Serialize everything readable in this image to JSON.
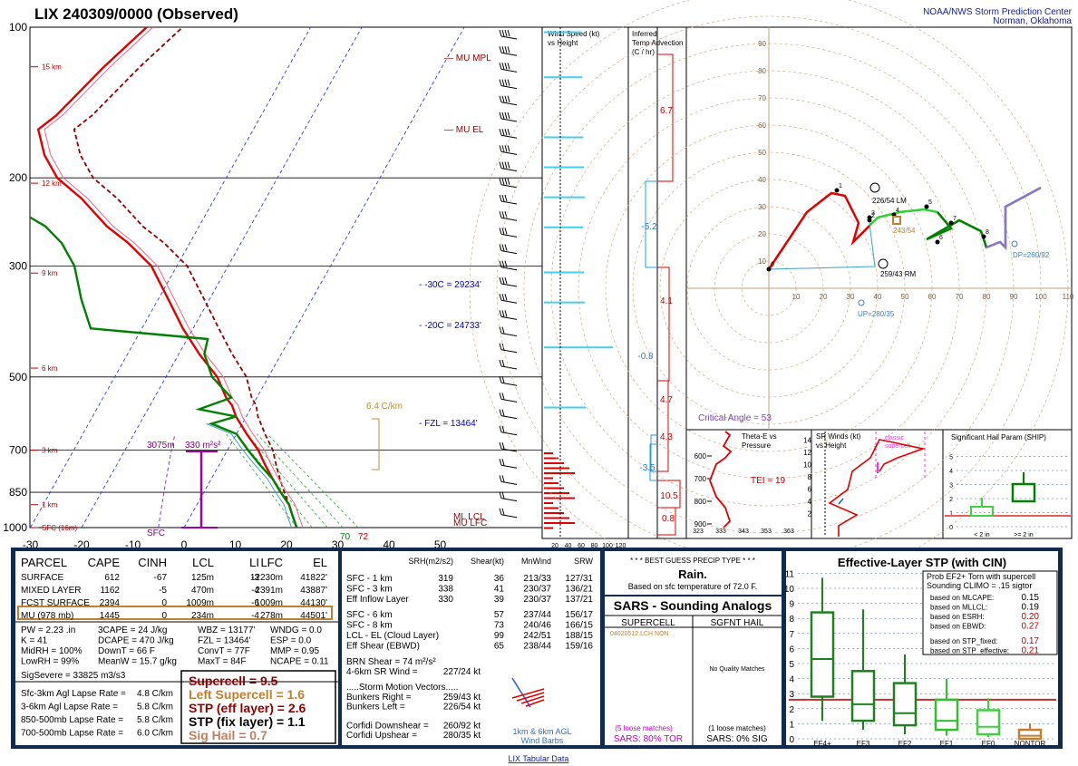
{
  "header": {
    "title": "LIX  240309/0000  (Observed)",
    "org1": "NOAA/NWS Storm Prediction Center",
    "org2": "Norman, Oklahoma"
  },
  "footer": {
    "link": "LIX Tabular Data"
  },
  "colors": {
    "temp": "#e00000",
    "dew": "#008000",
    "virt": "#b00040",
    "parcel": "#900000",
    "cyan": "#40d0f0",
    "purple": "#8040c0",
    "green": "#40e040",
    "darkgreen": "#008000",
    "navy": "#000080",
    "blue": "#0000c0"
  },
  "chart_data": [
    {
      "type": "line",
      "name": "skewt",
      "x_ticks": [
        "-30",
        "-20",
        "-10",
        "0",
        "10",
        "20",
        "30",
        "40",
        "50"
      ],
      "p_ticks": [
        "100",
        "200",
        "300",
        "500",
        "700",
        "850",
        "1000"
      ],
      "height_labels": [
        "15 km",
        "12 km",
        "9 km",
        "6 km",
        "3 km",
        "1 km",
        "SFC (16m)"
      ],
      "series": [
        {
          "name": "temperature",
          "points": [
            [
              22,
              1000
            ],
            [
              20,
              950
            ],
            [
              18,
              900
            ],
            [
              15,
              850
            ],
            [
              12,
              800
            ],
            [
              9,
              750
            ],
            [
              6,
              700
            ],
            [
              2,
              650
            ],
            [
              -2,
              600
            ],
            [
              -4,
              570
            ],
            [
              -6,
              550
            ],
            [
              -10,
              500
            ],
            [
              -16,
              450
            ],
            [
              -22,
              400
            ],
            [
              -28,
              350
            ],
            [
              -35,
              300
            ],
            [
              -42,
              270
            ],
            [
              -48,
              250
            ],
            [
              -56,
              220
            ],
            [
              -63,
              200
            ],
            [
              -68,
              180
            ],
            [
              -72,
              160
            ],
            [
              -70,
              150
            ],
            [
              -66,
              120
            ],
            [
              -62,
              100
            ]
          ]
        },
        {
          "name": "dewpoint",
          "points": [
            [
              22,
              1000
            ],
            [
              20,
              950
            ],
            [
              18,
              900
            ],
            [
              15,
              850
            ],
            [
              12,
              800
            ],
            [
              8,
              750
            ],
            [
              4,
              700
            ],
            [
              0,
              650
            ],
            [
              -6,
              620
            ],
            [
              -2,
              600
            ],
            [
              -10,
              580
            ],
            [
              -5,
              550
            ],
            [
              -11,
              500
            ],
            [
              -15,
              450
            ],
            [
              -16,
              420
            ],
            [
              -40,
              400
            ],
            [
              -45,
              350
            ],
            [
              -50,
              300
            ],
            [
              -55,
              270
            ],
            [
              -60,
              250
            ],
            [
              -68,
              230
            ],
            [
              -72,
              200
            ],
            [
              -80,
              180
            ],
            [
              -90,
              150
            ],
            [
              -96,
              130
            ],
            [
              -100,
              100
            ]
          ]
        }
      ],
      "annotations": [
        "MU MPL",
        "MU EL",
        "-30C = 29234'",
        "-20C = 24733'",
        "FZL = 13464'",
        "6.4 C/km",
        "3075m",
        "330 m²s²",
        "SFC",
        "MU LFC",
        "ML LCL",
        "70",
        "72"
      ]
    },
    {
      "type": "bar",
      "name": "wind speed vs height",
      "title": "Wind Speed (kt)\nvs Height",
      "x_ticks": [
        "20",
        "40",
        "60",
        "80",
        "100",
        "120"
      ],
      "bars": [
        [
          8,
          225,
          "cyan"
        ],
        [
          12,
          370,
          "cyan"
        ],
        [
          15,
          220,
          "cyan"
        ],
        [
          17,
          215,
          "cyan"
        ],
        [
          20,
          210,
          "cyan"
        ],
        [
          22,
          220,
          "cyan"
        ],
        [
          24,
          215,
          "cyan"
        ],
        [
          26,
          210,
          "cyan"
        ],
        [
          30,
          205,
          "cyan"
        ],
        [
          33,
          200,
          "cyan"
        ],
        [
          36,
          195,
          "cyan"
        ],
        [
          40,
          185,
          "purple"
        ],
        [
          44,
          170,
          "purple"
        ],
        [
          50,
          145,
          "purple"
        ],
        [
          55,
          140,
          "purple"
        ],
        [
          58,
          130,
          "purple"
        ],
        [
          60,
          125,
          "purple"
        ],
        [
          62,
          115,
          "darkgreen"
        ],
        [
          65,
          105,
          "green"
        ],
        [
          70,
          90,
          "darkgreen"
        ],
        [
          75,
          70,
          "green"
        ],
        [
          80,
          60,
          "green"
        ]
      ]
    },
    {
      "type": "bar",
      "name": "inferred temp advection",
      "title": "Inferred\nTemp Advection\n(C / hr)",
      "labels": [
        "6.7",
        "-5.2",
        "4.1",
        "-0.8",
        "4.7",
        "4.3",
        "-3.5",
        "10.5",
        "0.8"
      ]
    },
    {
      "type": "scatter",
      "name": "hodograph",
      "x_ticks": [
        "10",
        "20",
        "30",
        "40",
        "50",
        "60",
        "70",
        "80",
        "90",
        "100",
        "110"
      ],
      "labels": [
        "226/54 LM",
        "259/43 RM",
        "243/54",
        "DP=260/92",
        "UP=280/35",
        "Critical Angle = 53"
      ]
    },
    {
      "type": "line",
      "name": "theta-e",
      "title": "Theta-E vs\nPressure",
      "y_ticks": [
        "600",
        "700",
        "800",
        "900"
      ],
      "x_ticks": [
        "323",
        "333",
        "343",
        "353",
        "363"
      ],
      "note": "TEI = 19"
    },
    {
      "type": "line",
      "name": "sr winds",
      "title": "SR Winds (kt)\nvs Height",
      "y_ticks": [
        "2",
        "4",
        "6",
        "8",
        "10",
        "12",
        "14"
      ],
      "note": "classic\nsupercell"
    },
    {
      "type": "bar",
      "name": "ship",
      "title": "Significant Hail Param (SHIP)",
      "y_ticks": [
        "0",
        "1",
        "2",
        "3",
        "4",
        "5"
      ],
      "categories": [
        "< 2 in",
        ">= 2 in"
      ]
    },
    {
      "type": "bar",
      "name": "stp",
      "title": "Effective-Layer STP (with CIN)",
      "categories": [
        "EF4+",
        "EF3",
        "EF2",
        "EF1",
        "EF0",
        "NONTOR"
      ],
      "y_ticks": [
        "0",
        "1",
        "2",
        "3",
        "4",
        "5",
        "6",
        "7",
        "8",
        "9",
        "10",
        "11"
      ],
      "boxes": [
        {
          "lo": 1.2,
          "q1": 2.8,
          "med": 5.3,
          "q3": 8.4,
          "hi": 10.7
        },
        {
          "lo": 0.6,
          "q1": 1.2,
          "med": 2.3,
          "q3": 4.5,
          "hi": 8.6
        },
        {
          "lo": 0.3,
          "q1": 0.9,
          "med": 1.7,
          "q3": 3.7,
          "hi": 5.6
        },
        {
          "lo": 0.2,
          "q1": 0.6,
          "med": 1.2,
          "q3": 2.6,
          "hi": 4.0
        },
        {
          "lo": 0.1,
          "q1": 0.3,
          "med": 0.8,
          "q3": 1.9,
          "hi": 2.7
        },
        {
          "lo": 0.0,
          "q1": 0.0,
          "med": 0.2,
          "q3": 0.6,
          "hi": 1.0
        }
      ],
      "prob": [
        "Prob EF2+ Torn with supercell",
        "Sounding CLIMO = .15 sigtor"
      ],
      "rows": [
        [
          "based on MLCAPE:",
          "0.15"
        ],
        [
          "based on MLLCL:",
          "0.19"
        ],
        [
          "based on ESRH:",
          "0.20"
        ],
        [
          "based on EBWD:",
          "0.27"
        ],
        [
          "based on STP_fixed:",
          "0.17"
        ],
        [
          "based on STP_effective:",
          "0.21"
        ]
      ]
    }
  ],
  "parcel": {
    "headers": [
      "PARCEL",
      "CAPE",
      "CINH",
      "LCL",
      "LI",
      "LFC",
      "EL"
    ],
    "rows": [
      [
        "SURFACE",
        "612",
        "-67",
        "125m",
        "-3",
        "12230m",
        "41822'"
      ],
      [
        "MIXED LAYER",
        "1162",
        "-5",
        "470m",
        "-4",
        "2391m",
        "43887'"
      ],
      [
        "FCST SURFACE",
        "2394",
        "0",
        "1009m",
        "-6",
        "1009m",
        "44130'"
      ],
      [
        "MU   (978 mb)",
        "1445",
        "0",
        "234m",
        "-4",
        "278m",
        "44501'"
      ]
    ],
    "stats": [
      [
        "PW = 2.23 .in",
        "3CAPE = 24 J/kg",
        "WBZ = 13177'",
        "WNDG = 0.0"
      ],
      [
        "K = 41",
        "DCAPE = 470 J/kg",
        "FZL = 13464'",
        "ESP = 0.0"
      ],
      [
        "MidRH = 100%",
        "DownT = 66 F",
        "ConvT = 77F",
        "MMP = 0.95"
      ],
      [
        "LowRH = 99%",
        "MeanW = 15.7 g/kg",
        "MaxT = 84F",
        "NCAPE = 0.11"
      ]
    ],
    "sig_severe": "SigSevere = 33825 m3/s3",
    "lapse": [
      [
        "Sfc-3km Agl Lapse Rate =",
        "4.8 C/km"
      ],
      [
        "3-6km Agl Lapse Rate =",
        "5.8 C/km"
      ],
      [
        "850-500mb Lapse Rate =",
        "5.8 C/km"
      ],
      [
        "700-500mb Lapse Rate =",
        "6.0 C/km"
      ]
    ],
    "composite": [
      [
        "Supercell = 9.5",
        "#900000"
      ],
      [
        "Left Supercell = 1.6",
        "#c08030"
      ],
      [
        "STP (eff layer) = 2.6",
        "#900000"
      ],
      [
        "STP (fix layer) = 1.1",
        "#000000"
      ],
      [
        "Sig Hail = 0.7",
        "#c08060"
      ]
    ]
  },
  "kinematics": {
    "headers": [
      "SRH(m2/s2)",
      "Shear(kt)",
      "MnWind",
      "SRW"
    ],
    "rows": [
      [
        "SFC - 1 km",
        "319",
        "36",
        "213/33",
        "127/31"
      ],
      [
        "SFC - 3 km",
        "338",
        "41",
        "230/37",
        "136/21"
      ],
      [
        "Eff Inflow Layer",
        "330",
        "39",
        "230/37",
        "137/21"
      ],
      [
        "",
        "",
        "",
        "",
        ""
      ],
      [
        "SFC - 6 km",
        "",
        "57",
        "237/44",
        "156/17"
      ],
      [
        "SFC - 8 km",
        "",
        "73",
        "240/46",
        "166/15"
      ],
      [
        "LCL - EL (Cloud Layer)",
        "",
        "99",
        "242/51",
        "188/15"
      ],
      [
        "Eff Shear (EBWD)",
        "",
        "65",
        "238/44",
        "159/16"
      ]
    ],
    "brn": "BRN Shear =  74 m²/s²",
    "srwind": [
      "4-6km SR Wind =",
      "227/24 kt"
    ],
    "storm_title": ".....Storm Motion Vectors.....",
    "storm": [
      [
        "Bunkers Right =",
        "259/43 kt"
      ],
      [
        "Bunkers Left =",
        "226/54 kt"
      ],
      [
        "",
        ""
      ],
      [
        "Corfidi Downshear =",
        "260/92 kt"
      ],
      [
        "Corfidi Upshear =",
        "280/35 kt"
      ]
    ],
    "barb_label": [
      "1km & 6km AGL",
      "Wind Barbs"
    ]
  },
  "precip": {
    "title": "* * * BEST GUESS PRECIP TYPE * * *",
    "type": "Rain.",
    "note": "Based on sfc temperature of 72.0 F."
  },
  "sars": {
    "title": "SARS - Sounding Analogs",
    "col1": "SUPERCELL",
    "col2": "SGFNT HAIL",
    "match1": "04020512.LCH  NON",
    "nomatch": "No Quality Matches",
    "loose1": "(5 loose matches)",
    "loose2": "(1 loose matches)",
    "tor": "SARS:  80% TOR",
    "sig": "SARS:  0% SIG"
  }
}
